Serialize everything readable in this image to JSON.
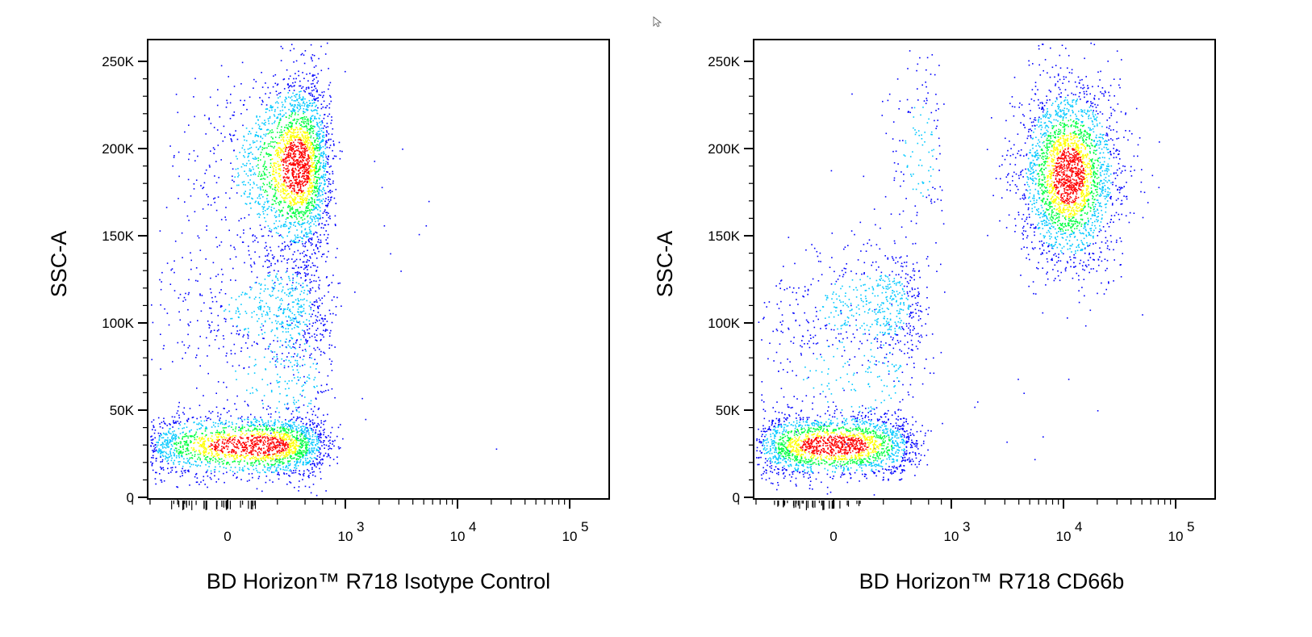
{
  "chart_data": [
    {
      "type": "scatter",
      "subtype": "density-dot-plot",
      "title": "",
      "xlabel": "BD Horizon™ R718 Isotype Control",
      "ylabel": "SSC-A",
      "x_scale": "biexponential",
      "ylim": [
        0,
        262144
      ],
      "y_ticks": [
        "0",
        "50K",
        "100K",
        "150K",
        "200K",
        "250K"
      ],
      "x_ticks": [
        "0",
        "10",
        "10",
        "10"
      ],
      "x_tick_exponents": [
        "",
        "3",
        "4",
        "5"
      ],
      "density_colors": [
        "#0000ff",
        "#00c8ff",
        "#00ff40",
        "#ffff00",
        "#ff0000"
      ],
      "populations": [
        {
          "x_center": 100,
          "y_center": 30000,
          "x_spread": 260,
          "y_spread": 9000,
          "count": 2200
        },
        {
          "x_center": 330,
          "y_center": 190000,
          "x_spread": 180,
          "y_spread": 25000,
          "count": 2600
        },
        {
          "x_center": 220,
          "y_center": 110000,
          "x_spread": 220,
          "y_spread": 18000,
          "count": 650
        },
        {
          "x_center": 280,
          "y_center": 70000,
          "x_spread": 240,
          "y_spread": 20000,
          "count": 250
        }
      ],
      "outlier_points": [
        [
          2100,
          178000
        ],
        [
          3200,
          200000
        ],
        [
          1800,
          193000
        ],
        [
          5500,
          170000
        ],
        [
          5200,
          156000
        ],
        [
          3100,
          130000
        ],
        [
          2500,
          140000
        ],
        [
          1200,
          118000
        ],
        [
          1400,
          57000
        ],
        [
          1500,
          45000
        ],
        [
          2200,
          156000
        ],
        [
          22000,
          28000
        ],
        [
          900,
          110000
        ],
        [
          4500,
          151000
        ]
      ]
    },
    {
      "type": "scatter",
      "subtype": "density-dot-plot",
      "title": "",
      "xlabel": "BD Horizon™ R718 CD66b",
      "ylabel": "SSC-A",
      "x_scale": "biexponential",
      "ylim": [
        0,
        262144
      ],
      "y_ticks": [
        "0",
        "50K",
        "100K",
        "150K",
        "200K",
        "250K"
      ],
      "x_ticks": [
        "0",
        "10",
        "10",
        "10"
      ],
      "x_tick_exponents": [
        "",
        "3",
        "4",
        "5"
      ],
      "density_colors": [
        "#0000ff",
        "#00c8ff",
        "#00ff40",
        "#ffff00",
        "#ff0000"
      ],
      "populations": [
        {
          "x_center": 0,
          "y_center": 30000,
          "x_spread": 200,
          "y_spread": 9000,
          "count": 2100
        },
        {
          "x_center": 11000,
          "y_center": 185000,
          "x_spread_decades": 0.22,
          "y_spread": 26000,
          "count": 2700
        },
        {
          "x_center": 160,
          "y_center": 110000,
          "x_spread": 200,
          "y_spread": 17000,
          "count": 600
        },
        {
          "x_center": 100,
          "y_center": 70000,
          "x_spread": 200,
          "y_spread": 20000,
          "count": 220
        },
        {
          "x_center": 500,
          "y_center": 200000,
          "x_spread": 160,
          "y_spread": 25000,
          "count": 150
        }
      ],
      "outlier_points": [
        [
          450,
          245000
        ],
        [
          750,
          248000
        ],
        [
          3900,
          68000
        ],
        [
          4400,
          60000
        ],
        [
          11000,
          68000
        ],
        [
          20000,
          50000
        ],
        [
          6500,
          35000
        ],
        [
          5500,
          22000
        ],
        [
          1700,
          55000
        ],
        [
          3100,
          32000
        ],
        [
          1600,
          52000
        ],
        [
          50000,
          105000
        ],
        [
          70000,
          178000
        ],
        [
          42000,
          196000
        ],
        [
          850,
          118000
        ]
      ]
    }
  ]
}
